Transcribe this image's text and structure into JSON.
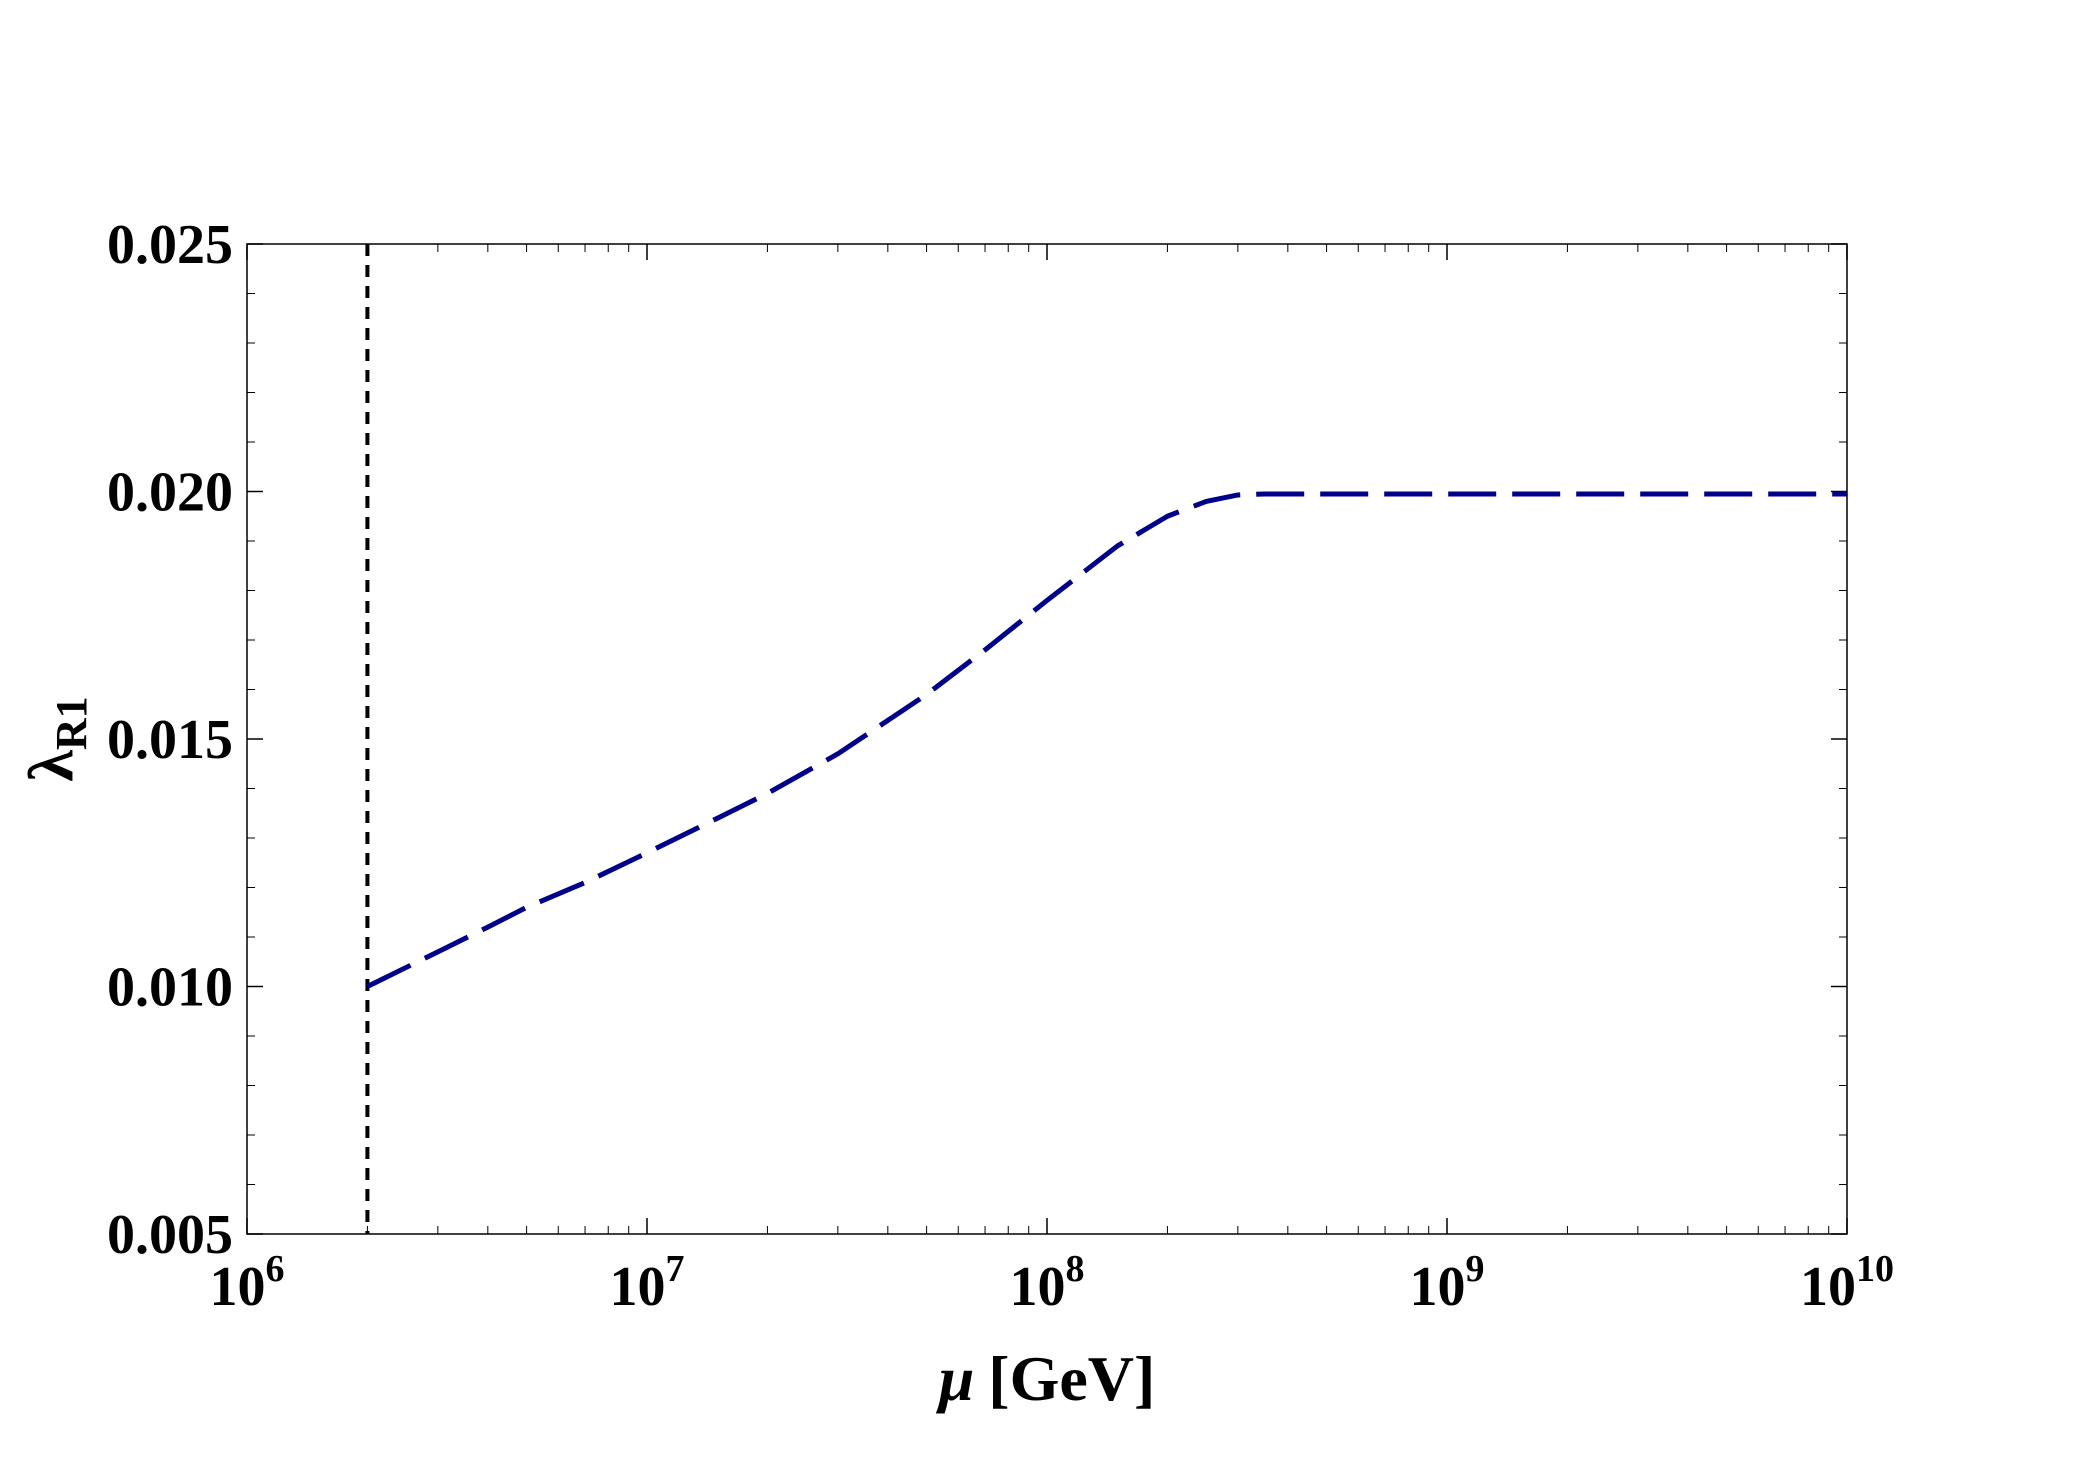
{
  "chart_data": {
    "type": "line",
    "xlabel_symbol": "μ",
    "xlabel_unit": "[GeV]",
    "ylabel_base": "λ",
    "ylabel_sub": "R1",
    "x_scale": "log",
    "xlim": [
      1000000,
      10000000000
    ],
    "ylim": [
      0.005,
      0.025
    ],
    "x_ticks": [
      {
        "value": 1000000,
        "base": "10",
        "exp": "6"
      },
      {
        "value": 10000000,
        "base": "10",
        "exp": "7"
      },
      {
        "value": 100000000,
        "base": "10",
        "exp": "8"
      },
      {
        "value": 1000000000,
        "base": "10",
        "exp": "9"
      },
      {
        "value": 10000000000,
        "base": "10",
        "exp": "10"
      }
    ],
    "y_ticks": [
      {
        "value": 0.005,
        "label": "0.005"
      },
      {
        "value": 0.01,
        "label": "0.010"
      },
      {
        "value": 0.015,
        "label": "0.015"
      },
      {
        "value": 0.02,
        "label": "0.020"
      },
      {
        "value": 0.025,
        "label": "0.025"
      }
    ],
    "grid": false,
    "series": [
      {
        "color": "#00008b",
        "style": "dashed",
        "x": [
          2000000,
          3000000,
          4000000,
          5000000,
          7000000,
          10000000,
          15000000,
          20000000,
          30000000,
          50000000,
          70000000,
          100000000,
          150000000,
          200000000,
          250000000,
          300000000,
          350000000,
          400000000,
          500000000,
          1000000000,
          3000000000,
          10000000000
        ],
        "y": [
          0.01,
          0.0107,
          0.0112,
          0.0116,
          0.0121,
          0.0127,
          0.0134,
          0.0139,
          0.0147,
          0.0159,
          0.0168,
          0.0178,
          0.0189,
          0.0195,
          0.0198,
          0.01993,
          0.01995,
          0.01995,
          0.01995,
          0.01995,
          0.01995,
          0.01995
        ]
      }
    ],
    "vertical_line": {
      "x": 2000000,
      "color": "#000000",
      "style": "dashed"
    }
  }
}
